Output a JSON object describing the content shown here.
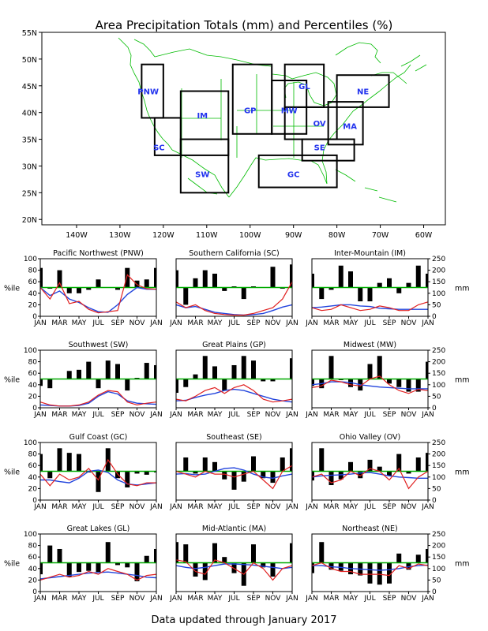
{
  "title": "Area Precipitation Totals (mm) and Percentiles (%)",
  "footer": "Data updated through January 2017",
  "colors": {
    "total_bars": "#000000",
    "percentile_mean": "#2244dd",
    "percentile_actual": "#e02020",
    "reference_50": "#00aa00",
    "map_lines": "#00bb00",
    "region_labels": "#2233ee"
  },
  "map": {
    "lat_ticks": [
      "55N",
      "50N",
      "45N",
      "40N",
      "35N",
      "30N",
      "25N",
      "20N"
    ],
    "lon_ticks": [
      "140W",
      "130W",
      "120W",
      "110W",
      "100W",
      "90W",
      "80W",
      "70W",
      "60W"
    ],
    "regions": [
      "PNW",
      "SC",
      "IM",
      "SW",
      "GP",
      "MW",
      "GL",
      "OV",
      "MA",
      "SE",
      "NE",
      "GC"
    ]
  },
  "panel_axes": {
    "left_label": "%ile",
    "right_label": "mm",
    "left_ticks": [
      "0",
      "20",
      "40",
      "60",
      "80",
      "100"
    ],
    "right_ticks": [
      "0",
      "50",
      "100",
      "150",
      "200",
      "250"
    ],
    "month_ticks": [
      "JAN",
      "MAR",
      "MAY",
      "JUL",
      "SEP",
      "NOV",
      "JAN"
    ]
  },
  "chart_data": [
    {
      "type": "bar+line",
      "title": "Pacific Northwest (PNW)",
      "x": [
        "Jan 2016",
        "Feb",
        "Mar",
        "Apr",
        "May",
        "Jun",
        "Jul",
        "Aug",
        "Sep",
        "Oct",
        "Nov",
        "Dec",
        "Jan 2017"
      ],
      "ylim_pct": [
        0,
        100
      ],
      "ylim_mm": [
        0,
        250
      ],
      "series": [
        {
          "name": "anomaly_mm",
          "values": [
            85,
            -5,
            75,
            -25,
            -25,
            -10,
            35,
            0,
            -10,
            85,
            30,
            35,
            85
          ]
        },
        {
          "name": "percentile_a",
          "values": [
            50,
            36,
            44,
            30,
            24,
            15,
            8,
            7,
            20,
            38,
            50,
            47,
            47
          ]
        },
        {
          "name": "percentile_b",
          "values": [
            50,
            30,
            58,
            22,
            26,
            12,
            6,
            8,
            10,
            72,
            55,
            48,
            47
          ]
        }
      ]
    },
    {
      "type": "bar+line",
      "title": "Southern California (SC)",
      "x": [
        "Jan 2016",
        "Feb",
        "Mar",
        "Apr",
        "May",
        "Jun",
        "Jul",
        "Aug",
        "Sep",
        "Oct",
        "Nov",
        "Dec",
        "Jan 2017"
      ],
      "ylim_pct": [
        0,
        100
      ],
      "ylim_mm": [
        0,
        250
      ],
      "series": [
        {
          "name": "anomaly_mm",
          "values": [
            75,
            -75,
            40,
            75,
            60,
            -15,
            5,
            -50,
            5,
            0,
            90,
            -5,
            100
          ]
        },
        {
          "name": "percentile_a",
          "values": [
            20,
            15,
            17,
            12,
            7,
            5,
            3,
            2,
            3,
            5,
            10,
            16,
            20
          ]
        },
        {
          "name": "percentile_b",
          "values": [
            25,
            15,
            20,
            10,
            5,
            3,
            2,
            2,
            5,
            10,
            15,
            30,
            60
          ]
        }
      ]
    },
    {
      "type": "bar+line",
      "title": "Inter-Mountain (IM)",
      "x": [
        "Jan 2016",
        "Feb",
        "Mar",
        "Apr",
        "May",
        "Jun",
        "Jul",
        "Aug",
        "Sep",
        "Oct",
        "Nov",
        "Dec",
        "Jan 2017"
      ],
      "ylim_pct": [
        0,
        100
      ],
      "ylim_mm": [
        0,
        250
      ],
      "series": [
        {
          "name": "anomaly_mm",
          "values": [
            60,
            -50,
            -10,
            95,
            70,
            -60,
            -60,
            20,
            40,
            -25,
            20,
            95,
            60
          ]
        },
        {
          "name": "percentile_a",
          "values": [
            15,
            16,
            18,
            20,
            20,
            18,
            17,
            14,
            13,
            12,
            12,
            12,
            12
          ]
        },
        {
          "name": "percentile_b",
          "values": [
            15,
            10,
            12,
            20,
            15,
            10,
            12,
            18,
            15,
            10,
            10,
            20,
            25
          ]
        }
      ]
    },
    {
      "type": "bar+line",
      "title": "Southwest (SW)",
      "x": [
        "Jan 2016",
        "Feb",
        "Mar",
        "Apr",
        "May",
        "Jun",
        "Jul",
        "Aug",
        "Sep",
        "Oct",
        "Nov",
        "Dec",
        "Jan 2017"
      ],
      "ylim_pct": [
        0,
        100
      ],
      "ylim_mm": [
        0,
        250
      ],
      "series": [
        {
          "name": "anomaly_mm",
          "values": [
            -30,
            -40,
            0,
            35,
            40,
            75,
            -40,
            80,
            65,
            -50,
            5,
            70,
            60
          ]
        },
        {
          "name": "percentile_a",
          "values": [
            5,
            4,
            3,
            3,
            4,
            8,
            20,
            28,
            24,
            12,
            8,
            7,
            6
          ]
        },
        {
          "name": "percentile_b",
          "values": [
            10,
            5,
            3,
            3,
            5,
            10,
            22,
            30,
            28,
            10,
            5,
            8,
            10
          ]
        }
      ]
    },
    {
      "type": "bar+line",
      "title": "Great Plains (GP)",
      "x": [
        "Jan 2016",
        "Feb",
        "Mar",
        "Apr",
        "May",
        "Jun",
        "Jul",
        "Aug",
        "Sep",
        "Oct",
        "Nov",
        "Dec",
        "Jan 2017"
      ],
      "ylim_pct": [
        0,
        100
      ],
      "ylim_mm": [
        0,
        250
      ],
      "series": [
        {
          "name": "anomaly_mm",
          "values": [
            -60,
            -35,
            20,
            100,
            55,
            -50,
            60,
            100,
            80,
            -10,
            -10,
            0,
            90
          ]
        },
        {
          "name": "percentile_a",
          "values": [
            12,
            13,
            18,
            22,
            25,
            30,
            32,
            30,
            25,
            20,
            15,
            12,
            10
          ]
        },
        {
          "name": "percentile_b",
          "values": [
            15,
            12,
            20,
            30,
            35,
            25,
            35,
            40,
            30,
            15,
            10,
            12,
            15
          ]
        }
      ]
    },
    {
      "type": "bar+line",
      "title": "Midwest (MW)",
      "x": [
        "Jan 2016",
        "Feb",
        "Mar",
        "Apr",
        "May",
        "Jun",
        "Jul",
        "Aug",
        "Sep",
        "Oct",
        "Nov",
        "Dec",
        "Jan 2017"
      ],
      "ylim_pct": [
        0,
        100
      ],
      "ylim_mm": [
        0,
        250
      ],
      "series": [
        {
          "name": "anomaly_mm",
          "values": [
            -30,
            -40,
            100,
            -5,
            -35,
            -50,
            65,
            100,
            -20,
            -35,
            -55,
            -55,
            75
          ]
        },
        {
          "name": "percentile_a",
          "values": [
            40,
            42,
            45,
            45,
            44,
            40,
            38,
            36,
            35,
            34,
            33,
            33,
            33
          ]
        },
        {
          "name": "percentile_b",
          "values": [
            35,
            38,
            48,
            45,
            40,
            38,
            50,
            55,
            40,
            30,
            25,
            32,
            30
          ]
        }
      ]
    },
    {
      "type": "bar+line",
      "title": "Gulf Coast (GC)",
      "x": [
        "Jan 2016",
        "Feb",
        "Mar",
        "Apr",
        "May",
        "Jun",
        "Jul",
        "Aug",
        "Sep",
        "Oct",
        "Nov",
        "Dec",
        "Jan 2017"
      ],
      "ylim_pct": [
        0,
        100
      ],
      "ylim_mm": [
        0,
        250
      ],
      "series": [
        {
          "name": "anomaly_mm",
          "values": [
            75,
            -30,
            100,
            80,
            75,
            -5,
            -90,
            100,
            -30,
            -70,
            -10,
            -15,
            -5
          ]
        },
        {
          "name": "percentile_a",
          "values": [
            35,
            35,
            32,
            30,
            38,
            50,
            52,
            48,
            35,
            28,
            26,
            28,
            30
          ]
        },
        {
          "name": "percentile_b",
          "values": [
            45,
            25,
            45,
            35,
            40,
            55,
            35,
            70,
            45,
            28,
            25,
            30,
            30
          ]
        }
      ]
    },
    {
      "type": "bar+line",
      "title": "Southeast (SE)",
      "x": [
        "Jan 2016",
        "Feb",
        "Mar",
        "Apr",
        "May",
        "Jun",
        "Jul",
        "Aug",
        "Sep",
        "Oct",
        "Nov",
        "Dec",
        "Jan 2017"
      ],
      "ylim_pct": [
        0,
        100
      ],
      "ylim_mm": [
        0,
        250
      ],
      "series": [
        {
          "name": "anomaly_mm",
          "values": [
            0,
            60,
            -10,
            60,
            40,
            -35,
            -80,
            -45,
            65,
            -30,
            -50,
            60,
            100
          ]
        },
        {
          "name": "percentile_a",
          "values": [
            45,
            46,
            44,
            45,
            50,
            55,
            56,
            52,
            45,
            40,
            38,
            42,
            45
          ]
        },
        {
          "name": "percentile_b",
          "values": [
            50,
            45,
            40,
            50,
            45,
            45,
            40,
            45,
            50,
            35,
            20,
            50,
            60
          ]
        }
      ]
    },
    {
      "type": "bar+line",
      "title": "Ohio Valley (OV)",
      "x": [
        "Jan 2016",
        "Feb",
        "Mar",
        "Apr",
        "May",
        "Jun",
        "Jul",
        "Aug",
        "Sep",
        "Oct",
        "Nov",
        "Dec",
        "Jan 2017"
      ],
      "ylim_pct": [
        0,
        100
      ],
      "ylim_mm": [
        0,
        250
      ],
      "series": [
        {
          "name": "anomaly_mm",
          "values": [
            -40,
            100,
            -60,
            -35,
            40,
            -30,
            50,
            20,
            -20,
            75,
            -10,
            60,
            80
          ]
        },
        {
          "name": "percentile_a",
          "values": [
            40,
            42,
            43,
            44,
            45,
            47,
            48,
            45,
            42,
            40,
            39,
            38,
            38
          ]
        },
        {
          "name": "percentile_b",
          "values": [
            40,
            45,
            30,
            35,
            50,
            42,
            55,
            50,
            35,
            55,
            20,
            40,
            50
          ]
        }
      ]
    },
    {
      "type": "bar+line",
      "title": "Great Lakes (GL)",
      "x": [
        "Jan 2016",
        "Feb",
        "Mar",
        "Apr",
        "May",
        "Jun",
        "Jul",
        "Aug",
        "Sep",
        "Oct",
        "Nov",
        "Dec",
        "Jan 2017"
      ],
      "ylim_pct": [
        0,
        100
      ],
      "ylim_mm": [
        0,
        250
      ],
      "series": [
        {
          "name": "anomaly_mm",
          "values": [
            -50,
            75,
            60,
            -60,
            -40,
            -35,
            -40,
            90,
            -10,
            -20,
            -80,
            30,
            60
          ]
        },
        {
          "name": "percentile_a",
          "values": [
            22,
            24,
            26,
            28,
            30,
            32,
            33,
            34,
            32,
            30,
            28,
            25,
            24
          ]
        },
        {
          "name": "percentile_b",
          "values": [
            20,
            25,
            30,
            25,
            28,
            35,
            30,
            40,
            35,
            30,
            20,
            28,
            30
          ]
        }
      ]
    },
    {
      "type": "bar+line",
      "title": "Mid-Atlantic (MA)",
      "x": [
        "Jan 2016",
        "Feb",
        "Mar",
        "Apr",
        "May",
        "Jun",
        "Jul",
        "Aug",
        "Sep",
        "Oct",
        "Nov",
        "Dec",
        "Jan 2017"
      ],
      "ylim_pct": [
        0,
        100
      ],
      "ylim_mm": [
        0,
        250
      ],
      "series": [
        {
          "name": "anomaly_mm",
          "values": [
            90,
            80,
            -60,
            -75,
            85,
            25,
            -45,
            -100,
            80,
            -20,
            -60,
            0,
            85
          ]
        },
        {
          "name": "percentile_a",
          "values": [
            45,
            42,
            40,
            42,
            45,
            48,
            48,
            47,
            46,
            44,
            42,
            40,
            42
          ]
        },
        {
          "name": "percentile_b",
          "values": [
            55,
            52,
            35,
            30,
            55,
            50,
            40,
            30,
            50,
            40,
            20,
            40,
            45
          ]
        }
      ]
    },
    {
      "type": "bar+line",
      "title": "Northeast (NE)",
      "x": [
        "Jan 2016",
        "Feb",
        "Mar",
        "Apr",
        "May",
        "Jun",
        "Jul",
        "Aug",
        "Sep",
        "Oct",
        "Nov",
        "Dec",
        "Jan 2017"
      ],
      "ylim_pct": [
        0,
        100
      ],
      "ylim_mm": [
        0,
        250
      ],
      "series": [
        {
          "name": "anomaly_mm",
          "values": [
            -45,
            90,
            -30,
            -35,
            -50,
            -55,
            -90,
            -95,
            -90,
            40,
            -30,
            35,
            60
          ]
        },
        {
          "name": "percentile_a",
          "values": [
            45,
            45,
            43,
            42,
            40,
            39,
            38,
            37,
            38,
            40,
            43,
            45,
            46
          ]
        },
        {
          "name": "percentile_b",
          "values": [
            45,
            50,
            40,
            35,
            35,
            30,
            30,
            30,
            28,
            45,
            40,
            48,
            45
          ]
        }
      ]
    }
  ]
}
